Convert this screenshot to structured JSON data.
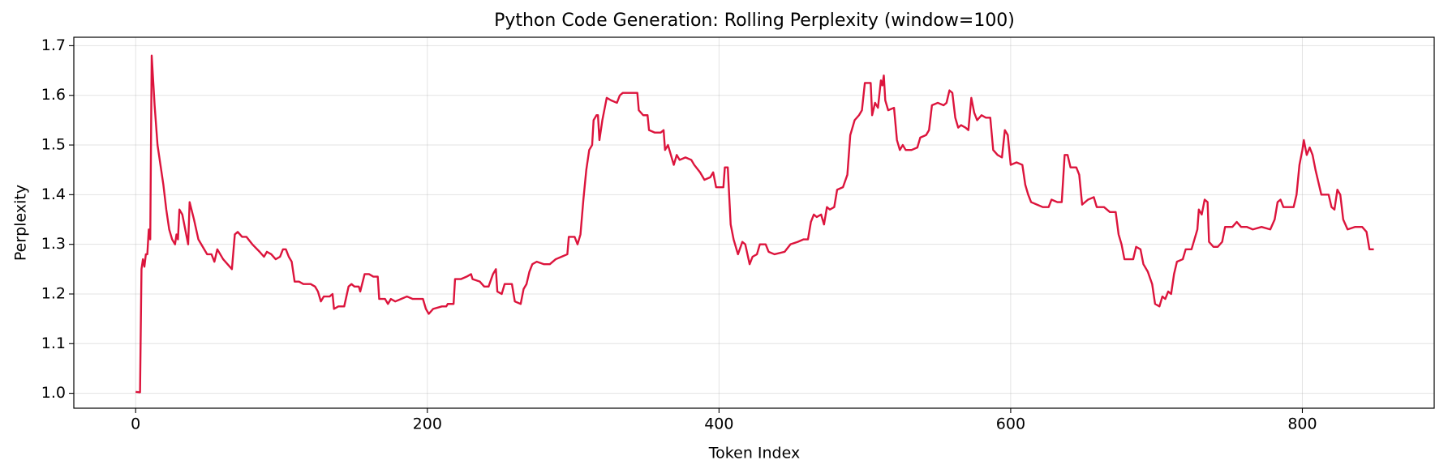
{
  "chart_data": {
    "type": "line",
    "title": "Python Code Generation: Rolling Perplexity (window=100)",
    "xlabel": "Token Index",
    "ylabel": "Perplexity",
    "xlim": [
      -42.4,
      890.4
    ],
    "ylim": [
      0.97,
      1.717
    ],
    "xticks": [
      0,
      200,
      400,
      600,
      800
    ],
    "yticks": [
      {
        "value": 1.0,
        "label": "1.0"
      },
      1.1,
      1.2,
      1.3,
      1.4,
      1.5,
      1.6,
      1.7
    ],
    "grid": true,
    "x": [
      0,
      3,
      4,
      5,
      6,
      7,
      8,
      9,
      10,
      11,
      13,
      15,
      17,
      19,
      21,
      23,
      25,
      27,
      28,
      29,
      30,
      32,
      34,
      36,
      37,
      40,
      43,
      46,
      49,
      52,
      54,
      56,
      60,
      63,
      66,
      68,
      70,
      73,
      76,
      80,
      85,
      88,
      90,
      93,
      96,
      99,
      101,
      103,
      105,
      107,
      109,
      112,
      115,
      120,
      123,
      125,
      127,
      129,
      133,
      135,
      136,
      139,
      143,
      146,
      148,
      150,
      153,
      154,
      157,
      160,
      163,
      166,
      167,
      171,
      173,
      175,
      178,
      182,
      186,
      190,
      197,
      199,
      201,
      204,
      210,
      213,
      214,
      218,
      219,
      223,
      227,
      230,
      231,
      236,
      239,
      242,
      245,
      247,
      248,
      251,
      253,
      258,
      260,
      264,
      266,
      268,
      270,
      272,
      275,
      280,
      284,
      288,
      292,
      296,
      297,
      301,
      303,
      305,
      307,
      309,
      311,
      313,
      314,
      316,
      317,
      318,
      320,
      323,
      326,
      330,
      332,
      334,
      340,
      344,
      345,
      348,
      351,
      352,
      356,
      360,
      362,
      363,
      365,
      367,
      369,
      371,
      373,
      377,
      381,
      383,
      387,
      390,
      394,
      396,
      398,
      403,
      404,
      406,
      408,
      410,
      413,
      416,
      418,
      421,
      423,
      426,
      428,
      432,
      434,
      438,
      445,
      449,
      454,
      458,
      461,
      463,
      465,
      467,
      470,
      472,
      474,
      476,
      479,
      481,
      485,
      488,
      490,
      493,
      496,
      498,
      500,
      504,
      505,
      507,
      509,
      511,
      512,
      513,
      514,
      516,
      520,
      522,
      524,
      526,
      528,
      532,
      536,
      538,
      542,
      544,
      546,
      550,
      554,
      556,
      558,
      560,
      562,
      564,
      566,
      569,
      571,
      573,
      575,
      577,
      580,
      583,
      586,
      588,
      591,
      594,
      596,
      598,
      600,
      604,
      608,
      610,
      612,
      614,
      618,
      622,
      626,
      628,
      632,
      635,
      637,
      639,
      641,
      645,
      647,
      649,
      653,
      657,
      659,
      664,
      668,
      672,
      674,
      676,
      678,
      684,
      686,
      689,
      691,
      694,
      697,
      699,
      702,
      704,
      706,
      708,
      710,
      712,
      714,
      718,
      720,
      724,
      726,
      728,
      729,
      731,
      733,
      735,
      736,
      739,
      742,
      745,
      747,
      752,
      755,
      758,
      762,
      766,
      772,
      778,
      781,
      783,
      785,
      787,
      794,
      796,
      798,
      800,
      801,
      803,
      805,
      807,
      809,
      813,
      818,
      820,
      822,
      824,
      826,
      828,
      831,
      836,
      841,
      844,
      846,
      849
    ],
    "series": [
      {
        "name": "Rolling Perplexity",
        "color": "#dc143c",
        "values": [
          1.003,
          1.002,
          1.25,
          1.27,
          1.255,
          1.28,
          1.28,
          1.33,
          1.31,
          1.68,
          1.58,
          1.5,
          1.46,
          1.42,
          1.37,
          1.33,
          1.31,
          1.3,
          1.32,
          1.31,
          1.37,
          1.36,
          1.33,
          1.3,
          1.385,
          1.35,
          1.31,
          1.295,
          1.28,
          1.28,
          1.265,
          1.29,
          1.27,
          1.26,
          1.25,
          1.32,
          1.325,
          1.315,
          1.315,
          1.3,
          1.285,
          1.275,
          1.285,
          1.28,
          1.27,
          1.275,
          1.29,
          1.29,
          1.275,
          1.265,
          1.225,
          1.225,
          1.22,
          1.22,
          1.215,
          1.205,
          1.185,
          1.195,
          1.195,
          1.2,
          1.17,
          1.175,
          1.175,
          1.215,
          1.22,
          1.215,
          1.215,
          1.205,
          1.24,
          1.24,
          1.235,
          1.235,
          1.19,
          1.19,
          1.18,
          1.19,
          1.185,
          1.19,
          1.195,
          1.19,
          1.19,
          1.17,
          1.16,
          1.17,
          1.175,
          1.175,
          1.18,
          1.18,
          1.23,
          1.23,
          1.235,
          1.24,
          1.23,
          1.225,
          1.215,
          1.215,
          1.24,
          1.25,
          1.205,
          1.2,
          1.22,
          1.22,
          1.185,
          1.18,
          1.21,
          1.22,
          1.245,
          1.26,
          1.265,
          1.26,
          1.26,
          1.27,
          1.275,
          1.28,
          1.315,
          1.315,
          1.3,
          1.32,
          1.39,
          1.45,
          1.49,
          1.5,
          1.55,
          1.56,
          1.56,
          1.51,
          1.55,
          1.595,
          1.59,
          1.585,
          1.6,
          1.605,
          1.605,
          1.605,
          1.57,
          1.56,
          1.56,
          1.53,
          1.525,
          1.525,
          1.53,
          1.49,
          1.5,
          1.48,
          1.46,
          1.48,
          1.47,
          1.475,
          1.47,
          1.46,
          1.445,
          1.43,
          1.435,
          1.445,
          1.415,
          1.415,
          1.455,
          1.455,
          1.34,
          1.31,
          1.28,
          1.305,
          1.3,
          1.26,
          1.275,
          1.28,
          1.3,
          1.3,
          1.285,
          1.28,
          1.285,
          1.3,
          1.305,
          1.31,
          1.31,
          1.345,
          1.36,
          1.355,
          1.36,
          1.34,
          1.375,
          1.37,
          1.375,
          1.41,
          1.415,
          1.44,
          1.52,
          1.55,
          1.56,
          1.57,
          1.625,
          1.625,
          1.56,
          1.585,
          1.575,
          1.63,
          1.62,
          1.64,
          1.59,
          1.57,
          1.575,
          1.51,
          1.49,
          1.5,
          1.49,
          1.49,
          1.495,
          1.515,
          1.52,
          1.53,
          1.58,
          1.585,
          1.58,
          1.585,
          1.61,
          1.605,
          1.555,
          1.535,
          1.54,
          1.535,
          1.53,
          1.595,
          1.565,
          1.55,
          1.56,
          1.555,
          1.555,
          1.49,
          1.48,
          1.475,
          1.53,
          1.52,
          1.46,
          1.465,
          1.46,
          1.42,
          1.4,
          1.385,
          1.38,
          1.375,
          1.375,
          1.39,
          1.385,
          1.385,
          1.48,
          1.48,
          1.455,
          1.455,
          1.44,
          1.38,
          1.39,
          1.395,
          1.375,
          1.375,
          1.365,
          1.365,
          1.32,
          1.3,
          1.27,
          1.27,
          1.295,
          1.29,
          1.26,
          1.245,
          1.22,
          1.18,
          1.175,
          1.195,
          1.19,
          1.205,
          1.2,
          1.24,
          1.265,
          1.27,
          1.29,
          1.29,
          1.31,
          1.33,
          1.37,
          1.36,
          1.39,
          1.385,
          1.305,
          1.295,
          1.295,
          1.305,
          1.335,
          1.335,
          1.345,
          1.335,
          1.335,
          1.33,
          1.335,
          1.33,
          1.35,
          1.385,
          1.39,
          1.375,
          1.375,
          1.4,
          1.46,
          1.49,
          1.51,
          1.48,
          1.495,
          1.48,
          1.45,
          1.4,
          1.4,
          1.375,
          1.37,
          1.41,
          1.4,
          1.35,
          1.33,
          1.335,
          1.335,
          1.325,
          1.29,
          1.29
        ]
      }
    ]
  }
}
